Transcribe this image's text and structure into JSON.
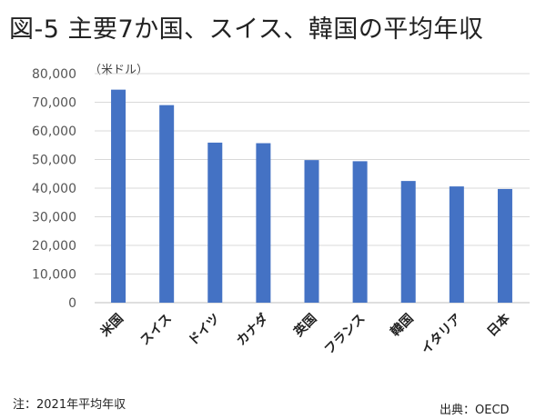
{
  "title": "図-5 主要7か国、スイス、韓国の平均年収",
  "unit": "（米ドル）",
  "note": "注：2021年平均年収",
  "source": "出典：OECD",
  "colors": {
    "bar": "#4472C4",
    "grid": "#d9d9d9"
  },
  "chart_data": {
    "type": "bar",
    "title": "図-5 主要7か国、スイス、韓国の平均年収",
    "ylabel": "（米ドル）",
    "categories": [
      "米国",
      "スイス",
      "ドイツ",
      "カナダ",
      "英国",
      "フランス",
      "韓国",
      "イタリア",
      "日本"
    ],
    "values": [
      74400,
      69000,
      55900,
      55700,
      49800,
      49400,
      42500,
      40600,
      39700
    ],
    "ylim": [
      0,
      80000
    ],
    "yticks": [
      0,
      10000,
      20000,
      30000,
      40000,
      50000,
      60000,
      70000,
      80000
    ],
    "ytick_labels": [
      "0",
      "10,000",
      "20,000",
      "30,000",
      "40,000",
      "50,000",
      "60,000",
      "70,000",
      "80,000"
    ],
    "grid": true
  }
}
